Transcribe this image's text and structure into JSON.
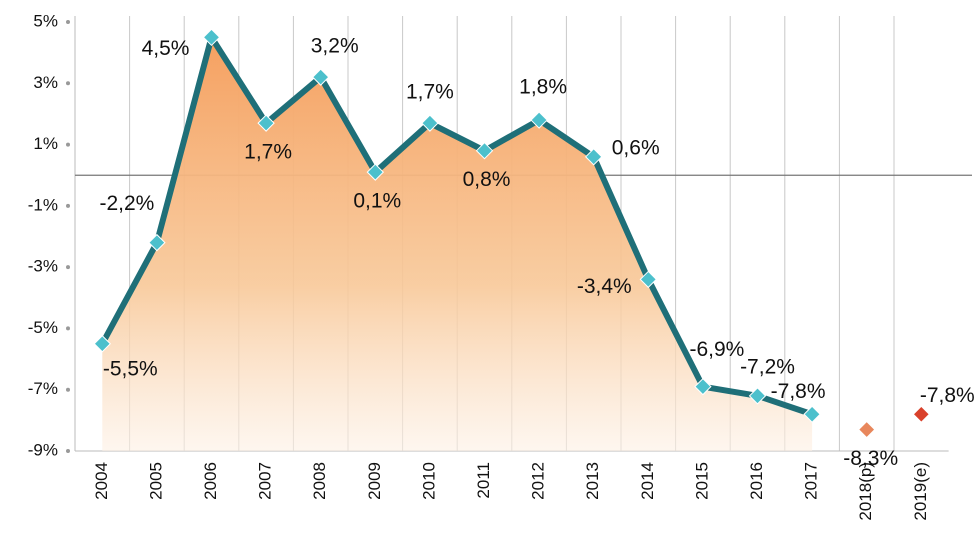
{
  "chart_data": {
    "type": "line",
    "categories": [
      "2004",
      "2005",
      "2006",
      "2007",
      "2008",
      "2009",
      "2010",
      "2011",
      "2012",
      "2013",
      "2014",
      "2015",
      "2016",
      "2017",
      "2018(p)",
      "2019(e)"
    ],
    "series": [
      {
        "color": "#1f6f78",
        "marker_color": "#4cc0cc",
        "line": true,
        "area_color": "#f5a868",
        "values": [
          -5.5,
          -2.2,
          4.5,
          1.7,
          3.2,
          0.1,
          1.7,
          0.8,
          1.8,
          0.6,
          -3.4,
          -6.9,
          -7.2,
          -7.8,
          null,
          null
        ],
        "value_labels": [
          "-5,5%",
          "-2,2%",
          "4,5%",
          "1,7%",
          "3,2%",
          "0,1%",
          "1,7%",
          "0,8%",
          "1,8%",
          "0,6%",
          "-3,4%",
          "-6,9%",
          "-7,2%",
          "-7,8%",
          null,
          null
        ]
      },
      {
        "color": "#e8875c",
        "marker_color": "#e8875c",
        "line": false,
        "values": [
          null,
          null,
          null,
          null,
          null,
          null,
          null,
          null,
          null,
          null,
          null,
          null,
          null,
          null,
          -8.3,
          null
        ],
        "value_labels": [
          null,
          null,
          null,
          null,
          null,
          null,
          null,
          null,
          null,
          null,
          null,
          null,
          null,
          null,
          "-8,3%",
          null
        ]
      },
      {
        "color": "#d9412b",
        "marker_color": "#d9412b",
        "line": false,
        "values": [
          null,
          null,
          null,
          null,
          null,
          null,
          null,
          null,
          null,
          null,
          null,
          null,
          null,
          null,
          null,
          -7.8
        ],
        "value_labels": [
          null,
          null,
          null,
          null,
          null,
          null,
          null,
          null,
          null,
          null,
          null,
          null,
          null,
          null,
          null,
          "-7,8%"
        ]
      }
    ],
    "ylim": [
      -9,
      5
    ],
    "yticks": [
      {
        "value": 5,
        "label": "5%"
      },
      {
        "value": 3,
        "label": "3%"
      },
      {
        "value": 1,
        "label": "1%"
      },
      {
        "value": -1,
        "label": "-1%"
      },
      {
        "value": -3,
        "label": "-3%"
      },
      {
        "value": -5,
        "label": "-5%"
      },
      {
        "value": -7,
        "label": "-7%"
      },
      {
        "value": -9,
        "label": "-9%"
      }
    ],
    "grid": true
  }
}
